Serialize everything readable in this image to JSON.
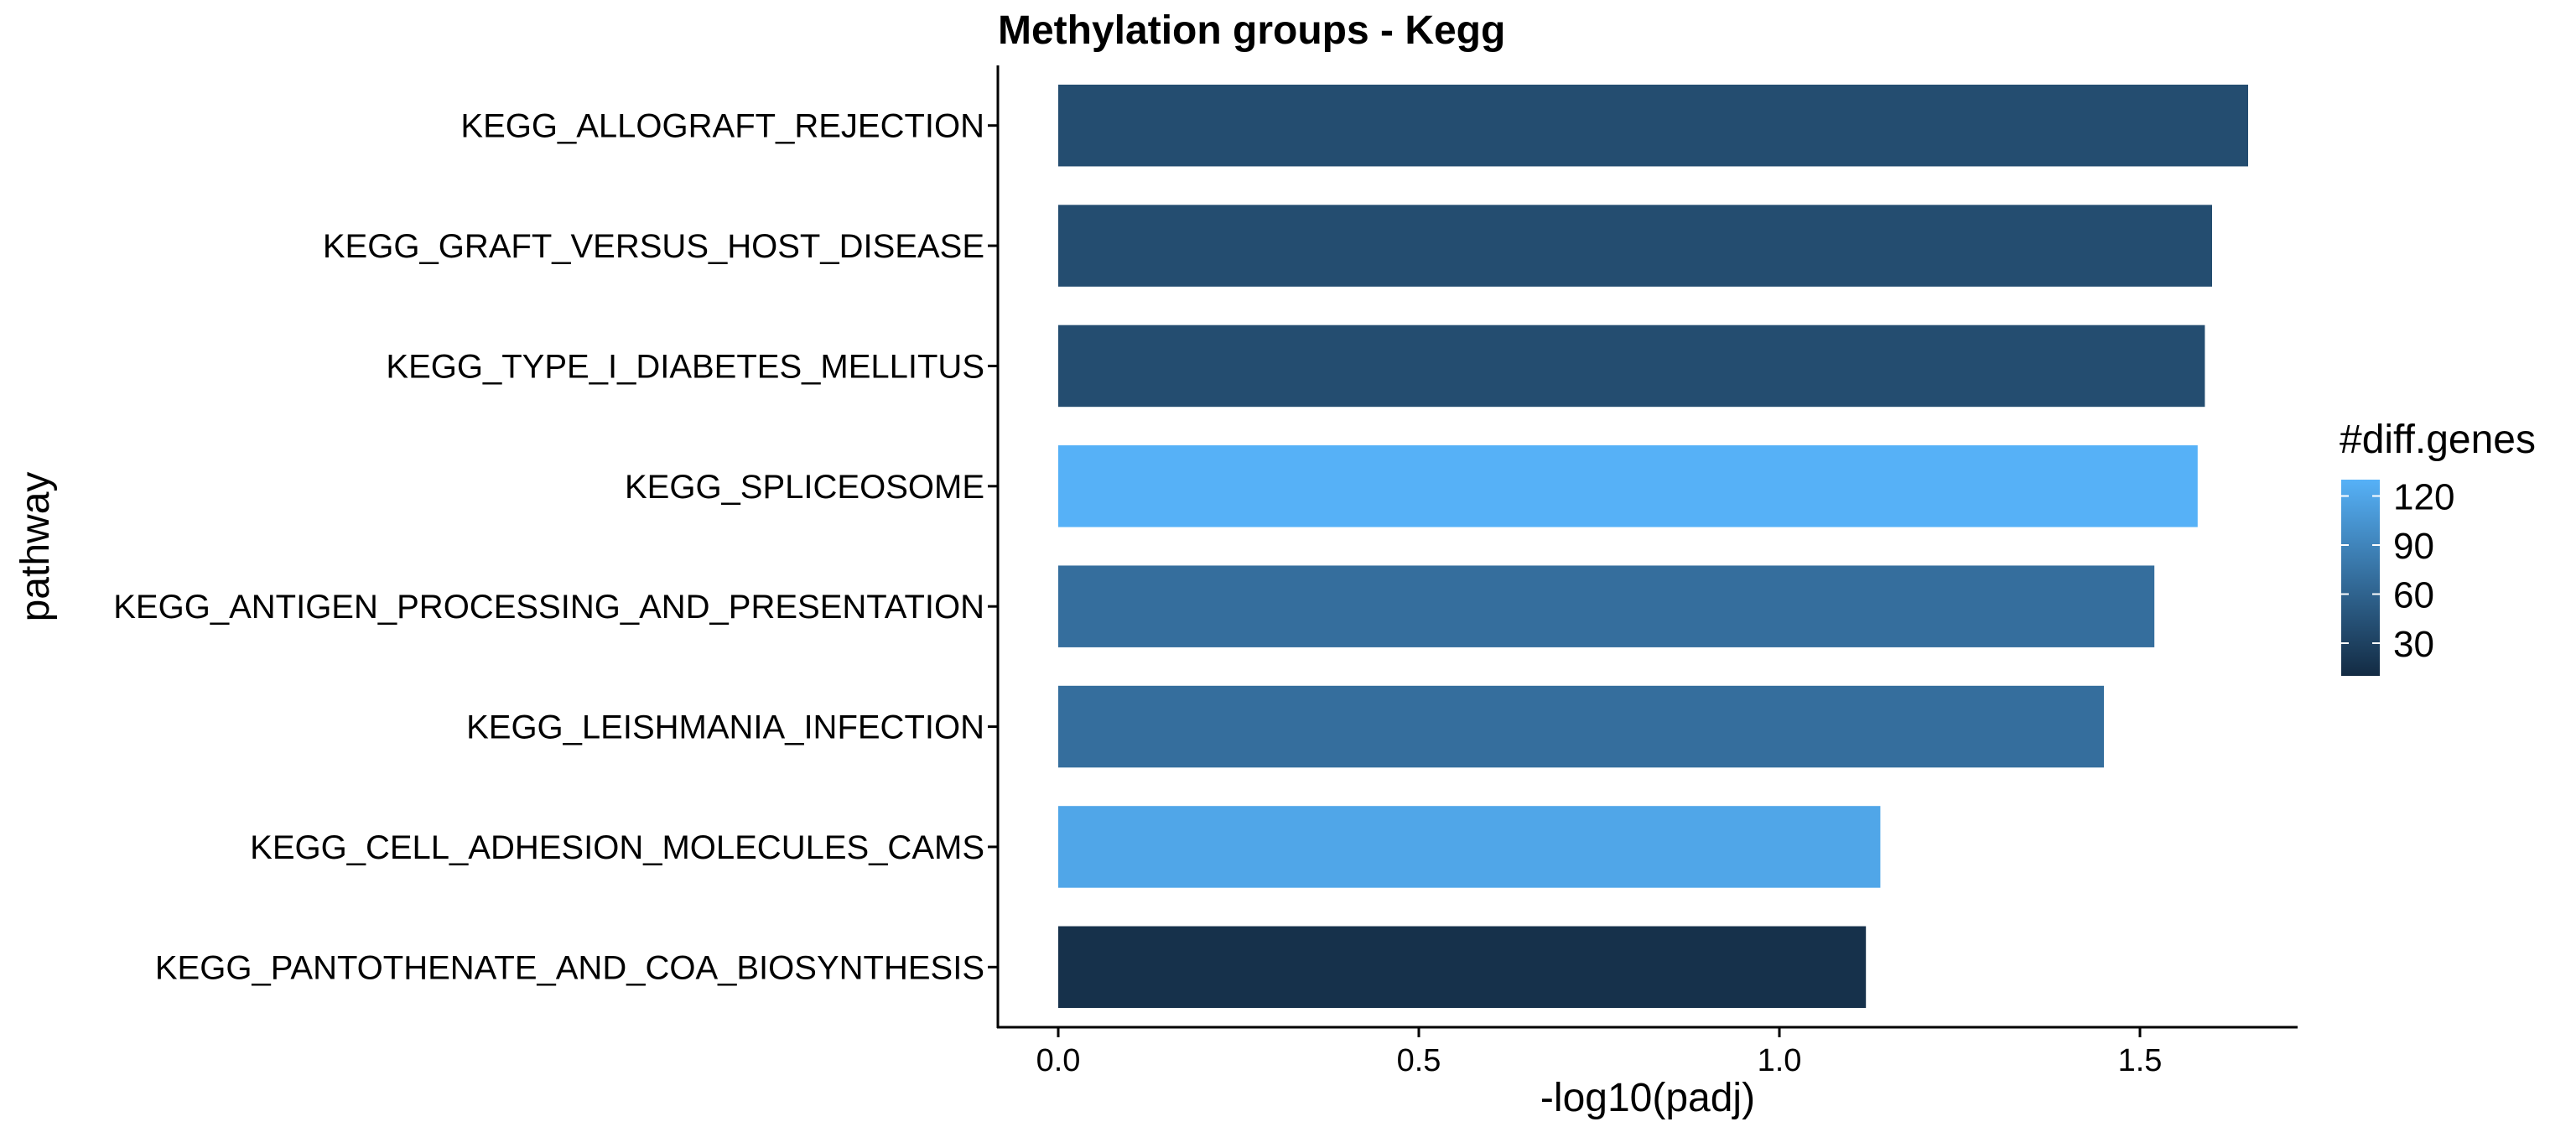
{
  "chart_data": {
    "type": "bar",
    "orientation": "horizontal",
    "title": "Methylation groups - Kegg",
    "xlabel": "-log10(padj)",
    "ylabel": "pathway",
    "xlim": [
      0,
      1.73
    ],
    "xticks": [
      0.0,
      0.5,
      1.0,
      1.5
    ],
    "xtick_labels": [
      "0.0",
      "0.5",
      "1.0",
      "1.5"
    ],
    "grid": false,
    "categories": [
      "KEGG_ALLOGRAFT_REJECTION",
      "KEGG_GRAFT_VERSUS_HOST_DISEASE",
      "KEGG_TYPE_I_DIABETES_MELLITUS",
      "KEGG_SPLICEOSOME",
      "KEGG_ANTIGEN_PROCESSING_AND_PRESENTATION",
      "KEGG_LEISHMANIA_INFECTION",
      "KEGG_CELL_ADHESION_MOLECULES_CAMS",
      "KEGG_PANTOTHENATE_AND_COA_BIOSYNTHESIS"
    ],
    "values": [
      1.65,
      1.6,
      1.59,
      1.58,
      1.52,
      1.45,
      1.14,
      1.12
    ],
    "color_values": [
      40,
      40,
      40,
      130,
      70,
      70,
      120,
      15
    ],
    "legend": {
      "title": "#diff.genes",
      "placement": "right",
      "ticks": [
        30,
        60,
        90,
        120
      ],
      "tick_labels": [
        "30",
        "60",
        "90",
        "120"
      ],
      "range": [
        10,
        130
      ],
      "color_low": "#132B43",
      "color_high": "#56B1F7"
    }
  }
}
